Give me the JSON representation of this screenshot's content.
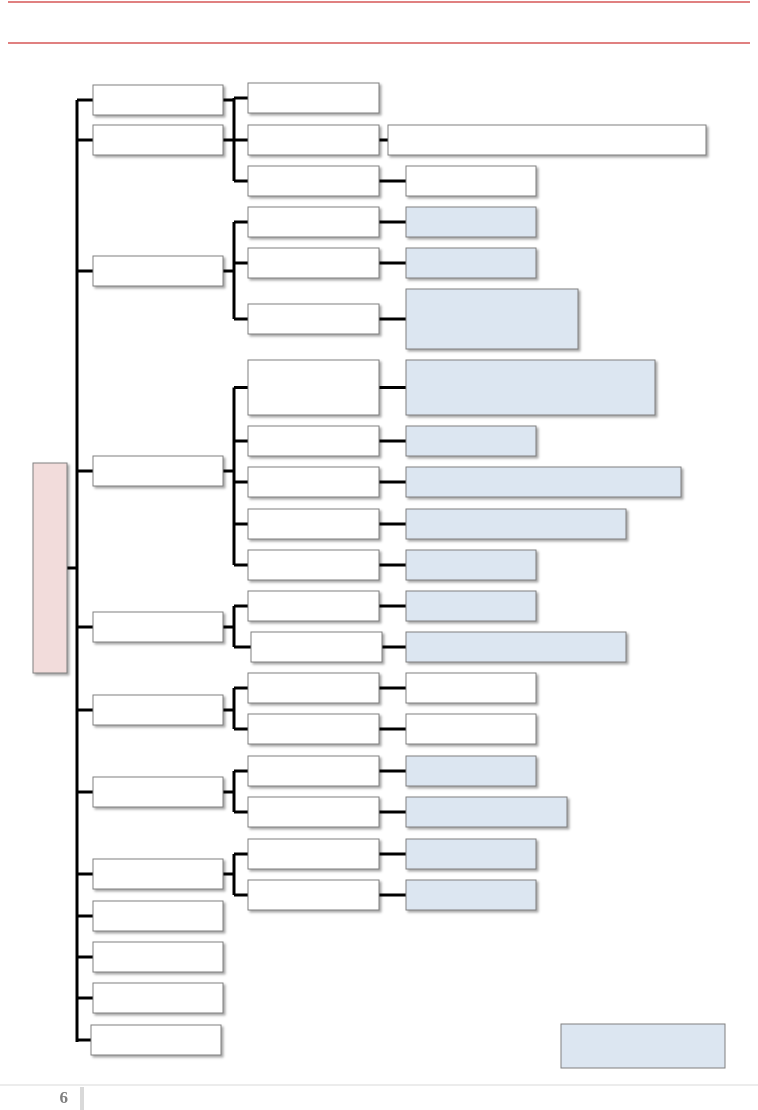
{
  "footer": {
    "page_number": "6"
  }
}
